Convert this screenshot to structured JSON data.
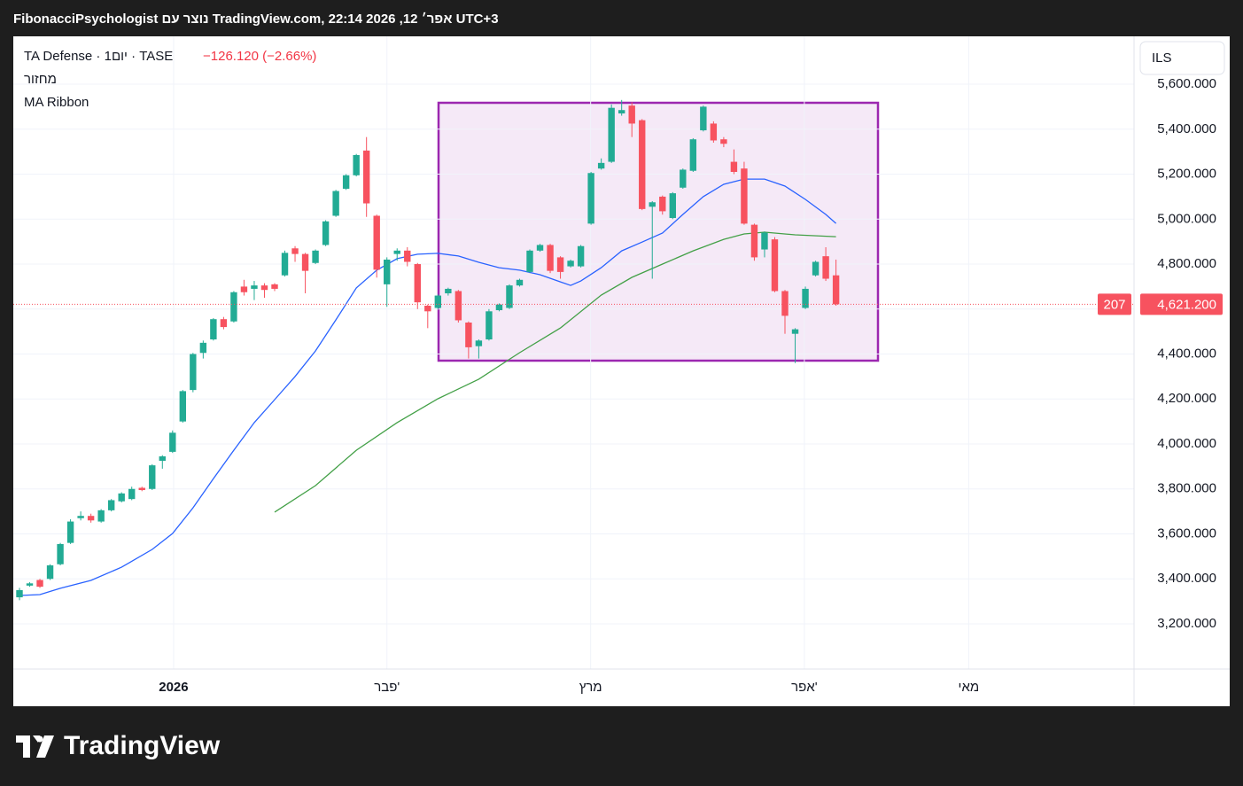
{
  "header": "FibonacciPsychologist נוצר עם TradingView.com, 22:14 2026 ,12 אפר׳ UTC+3",
  "logo_text": "TradingView",
  "chart_data": {
    "type": "candlestick",
    "symbol": "TA Defense · 1יום · TASE",
    "change": "−126.120 (−2.66%)",
    "indicators": [
      "מחזור",
      "MA Ribbon"
    ],
    "currency": "ILS",
    "countdown": "207",
    "last_price_label": "4,621.200",
    "up_color": "#22ab94",
    "down_color": "#f7525f",
    "grid": true,
    "xlim": [
      -0.607,
      109.2
    ],
    "xticks": [
      {
        "value": 15.1,
        "label": "2026"
      },
      {
        "value": 36.0,
        "label": "פבר'"
      },
      {
        "value": 55.96,
        "label": "מרץ"
      },
      {
        "value": 76.9,
        "label": "אפר'"
      },
      {
        "value": 93.0,
        "label": "מאי"
      }
    ],
    "ylim": [
      2999,
      5813
    ],
    "yticks": [
      {
        "value": 3200,
        "label": "3,200.000"
      },
      {
        "value": 3400,
        "label": "3,400.000"
      },
      {
        "value": 3600,
        "label": "3,600.000"
      },
      {
        "value": 3800,
        "label": "3,800.000"
      },
      {
        "value": 4000,
        "label": "4,000.000"
      },
      {
        "value": 4200,
        "label": "4,200.000"
      },
      {
        "value": 4400,
        "label": "4,400.000"
      },
      {
        "value": 4600,
        "label": "4,600.000"
      },
      {
        "value": 4800,
        "label": "4,800.000"
      },
      {
        "value": 5000,
        "label": "5,000.000"
      },
      {
        "value": 5200,
        "label": "5,200.000"
      },
      {
        "value": 5400,
        "label": "5,400.000"
      },
      {
        "value": 5600,
        "label": "5,600.000"
      }
    ],
    "open": [
      3318,
      3370,
      3395,
      3400,
      3465,
      3560,
      3670,
      3680,
      3655,
      3705,
      3745,
      3755,
      3805,
      3800,
      3925,
      3965,
      4100,
      4240,
      4405,
      4465,
      4555,
      4545,
      4700,
      4690,
      4705,
      4710,
      4750,
      4870,
      4845,
      4805,
      4885,
      5015,
      5135,
      5195,
      5305,
      5015,
      4710,
      4845,
      4860,
      4800,
      4615,
      4605,
      4670,
      4680,
      4540,
      4435,
      4465,
      4595,
      4605,
      4705,
      4765,
      4860,
      4885,
      4830,
      4790,
      4790,
      4980,
      5225,
      5255,
      5470,
      5505,
      5440,
      5055,
      5100,
      5005,
      5140,
      5215,
      5395,
      5425,
      5355,
      5255,
      5225,
      4975,
      4865,
      4910,
      4680,
      4490,
      4605,
      4750,
      4835,
      4750
    ],
    "high": [
      3360,
      3385,
      3400,
      3465,
      3560,
      3665,
      3700,
      3690,
      3710,
      3755,
      3785,
      3810,
      3810,
      3910,
      3950,
      4060,
      4240,
      4405,
      4460,
      4560,
      4565,
      4680,
      4730,
      4725,
      4715,
      4715,
      4860,
      4880,
      4850,
      4865,
      4995,
      5130,
      5200,
      5290,
      5365,
      5020,
      4830,
      4870,
      4875,
      4805,
      4620,
      4665,
      4695,
      4685,
      4545,
      4465,
      4600,
      4625,
      4710,
      4735,
      4865,
      4890,
      4890,
      4835,
      4820,
      4885,
      5210,
      5270,
      5510,
      5530,
      5520,
      5445,
      5080,
      5105,
      5120,
      5225,
      5360,
      5505,
      5435,
      5365,
      5310,
      5255,
      4980,
      4945,
      4920,
      4685,
      4515,
      4700,
      4815,
      4875,
      4820
    ],
    "low": [
      3305,
      3365,
      3360,
      3395,
      3460,
      3555,
      3660,
      3650,
      3650,
      3700,
      3740,
      3750,
      3790,
      3795,
      3890,
      3960,
      4095,
      4230,
      4380,
      4460,
      4510,
      4540,
      4660,
      4640,
      4650,
      4680,
      4745,
      4810,
      4670,
      4800,
      4880,
      5010,
      5130,
      5190,
      5010,
      4740,
      4610,
      4815,
      4790,
      4600,
      4515,
      4600,
      4660,
      4540,
      4380,
      4380,
      4460,
      4590,
      4600,
      4700,
      4760,
      4855,
      4760,
      4735,
      4785,
      4785,
      4975,
      5220,
      5250,
      5460,
      5365,
      5040,
      4735,
      5020,
      5000,
      5135,
      5210,
      5390,
      5340,
      5320,
      5200,
      4975,
      4815,
      4830,
      4675,
      4490,
      4360,
      4600,
      4745,
      4725,
      4615
    ],
    "close": [
      3350,
      3380,
      3365,
      3460,
      3555,
      3655,
      3680,
      3660,
      3705,
      3750,
      3780,
      3800,
      3795,
      3905,
      3945,
      4050,
      4235,
      4400,
      4450,
      4555,
      4520,
      4675,
      4675,
      4705,
      4685,
      4690,
      4850,
      4845,
      4770,
      4860,
      4990,
      5125,
      5195,
      5285,
      5070,
      4775,
      4820,
      4860,
      4810,
      4630,
      4590,
      4660,
      4690,
      4550,
      4430,
      4460,
      4590,
      4620,
      4705,
      4730,
      4860,
      4885,
      4770,
      4765,
      4815,
      4880,
      5205,
      5250,
      5495,
      5485,
      5425,
      5045,
      5075,
      5035,
      5115,
      5220,
      5355,
      5500,
      5350,
      5335,
      5210,
      4980,
      4830,
      4940,
      4680,
      4570,
      4510,
      4690,
      4810,
      4735,
      4621.2
    ],
    "ma_lines": [
      {
        "color": "#2962ff",
        "x": [
          0,
          2,
          4,
          7,
          10,
          13,
          15,
          17,
          19,
          21,
          23,
          25,
          27,
          29,
          31,
          33,
          35,
          37,
          39,
          41,
          43,
          45,
          47,
          49,
          51,
          53,
          54,
          55,
          57,
          59,
          61,
          63,
          65,
          67,
          69,
          71,
          73,
          75,
          77,
          79,
          80
        ],
        "values": [
          3326,
          3330,
          3358,
          3393,
          3452,
          3531,
          3602,
          3716,
          3846,
          3972,
          4095,
          4197,
          4300,
          4414,
          4552,
          4694,
          4773,
          4824,
          4844,
          4848,
          4836,
          4808,
          4784,
          4773,
          4753,
          4721,
          4705,
          4725,
          4784,
          4859,
          4898,
          4938,
          5021,
          5100,
          5155,
          5178,
          5178,
          5147,
          5088,
          5021,
          4981
        ]
      },
      {
        "color": "#43a047",
        "x": [
          25,
          29,
          33,
          37,
          41,
          45,
          49,
          53,
          57,
          60,
          63,
          66,
          69,
          71,
          73,
          76,
          80
        ],
        "values": [
          3697,
          3815,
          3972,
          4095,
          4201,
          4288,
          4406,
          4516,
          4662,
          4741,
          4800,
          4859,
          4910,
          4934,
          4942,
          4930,
          4922
        ]
      }
    ]
  }
}
